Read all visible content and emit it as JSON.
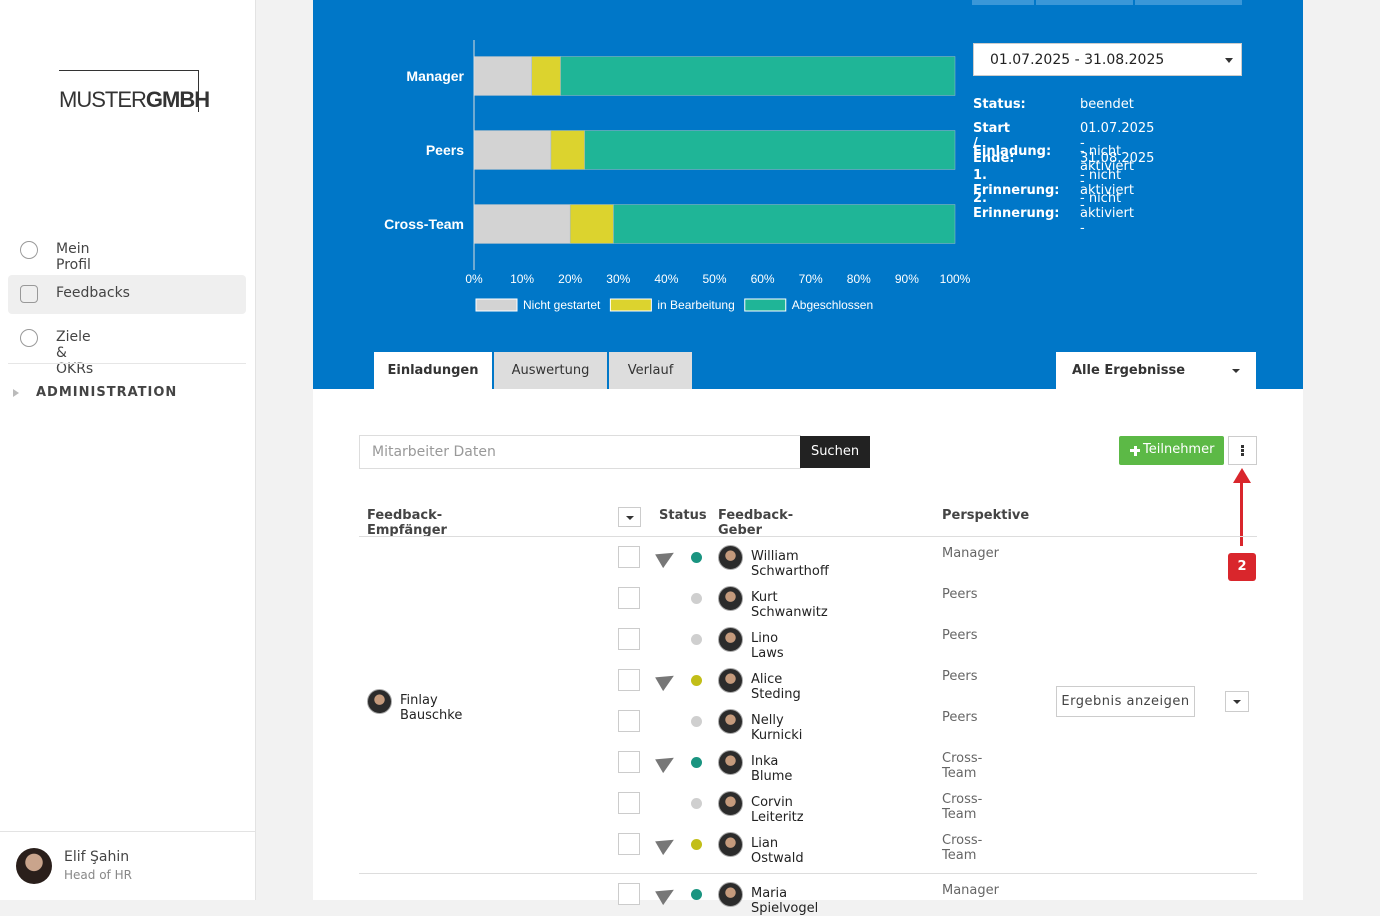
{
  "sidebar": {
    "logo": {
      "light": "MUSTER",
      "bold": "GMBH"
    },
    "nav": [
      "Mein Profil",
      "Feedbacks",
      "Ziele & OKRs"
    ],
    "admin": "ADMINISTRATION",
    "user": {
      "name": "Elif Şahin",
      "role": "Head of HR"
    }
  },
  "chart_data": {
    "type": "bar",
    "orientation": "horizontal",
    "stacked": true,
    "categories": [
      "Manager",
      "Peers",
      "Cross-Team"
    ],
    "series": [
      {
        "name": "Nicht gestartet",
        "color": "#d3d3d3",
        "values": [
          12,
          16,
          20
        ]
      },
      {
        "name": "in Bearbeitung",
        "color": "#dcd32e",
        "values": [
          6,
          7,
          9
        ]
      },
      {
        "name": "Abgeschlossen",
        "color": "#1fb597",
        "values": [
          82,
          77,
          71
        ]
      }
    ],
    "xlim": [
      0,
      100
    ],
    "xticks": [
      {
        "value": 0,
        "label": "0%"
      },
      {
        "value": 10,
        "label": "10%"
      },
      {
        "value": 20,
        "label": "20%"
      },
      {
        "value": 30,
        "label": "30%"
      },
      {
        "value": 40,
        "label": "40%"
      },
      {
        "value": 50,
        "label": "50%"
      },
      {
        "value": 60,
        "label": "60%"
      },
      {
        "value": 70,
        "label": "70%"
      },
      {
        "value": 80,
        "label": "80%"
      },
      {
        "value": 90,
        "label": "90%"
      },
      {
        "value": 100,
        "label": "100%"
      }
    ]
  },
  "period": {
    "selected": "01.07.2025 - 31.08.2025",
    "details": [
      {
        "label": "Status:",
        "value": "beendet"
      },
      {
        "label": "Start / Ende:",
        "value": "01.07.2025 - 31.08.2025"
      },
      {
        "label": "Einladung:",
        "value": "- nicht aktiviert -"
      },
      {
        "label": "1. Erinnerung:",
        "value": "- nicht aktiviert -"
      },
      {
        "label": "2. Erinnerung:",
        "value": "- nicht aktiviert -"
      }
    ]
  },
  "tabs": [
    "Einladungen",
    "Auswertung",
    "Verlauf"
  ],
  "filter": "Alle Ergebnisse",
  "search": {
    "placeholder": "Mitarbeiter Daten",
    "button": "Suchen"
  },
  "add_button": "Teilnehmer",
  "annotation": "2",
  "table": {
    "headers": [
      "Feedback-Empfänger",
      "Status",
      "Feedback-Geber",
      "Perspektive"
    ],
    "groups": [
      {
        "recipient": "Finlay Bauschke",
        "result_button": "Ergebnis anzeigen",
        "rows": [
          {
            "giver": "William Schwarthoff",
            "perspective": "Manager",
            "sent": true,
            "status": "done"
          },
          {
            "giver": "Kurt Schwanwitz",
            "perspective": "Peers",
            "sent": false,
            "status": "open"
          },
          {
            "giver": "Lino Laws",
            "perspective": "Peers",
            "sent": false,
            "status": "open"
          },
          {
            "giver": "Alice Steding",
            "perspective": "Peers",
            "sent": true,
            "status": "progress"
          },
          {
            "giver": "Nelly Kurnicki",
            "perspective": "Peers",
            "sent": false,
            "status": "open"
          },
          {
            "giver": "Inka Blume",
            "perspective": "Cross-Team",
            "sent": true,
            "status": "done"
          },
          {
            "giver": "Corvin Leiteritz",
            "perspective": "Cross-Team",
            "sent": false,
            "status": "open"
          },
          {
            "giver": "Lian Ostwald",
            "perspective": "Cross-Team",
            "sent": true,
            "status": "progress"
          }
        ]
      },
      {
        "rows": [
          {
            "giver": "Maria Spielvogel",
            "perspective": "Manager",
            "sent": true,
            "status": "done"
          }
        ]
      }
    ]
  }
}
